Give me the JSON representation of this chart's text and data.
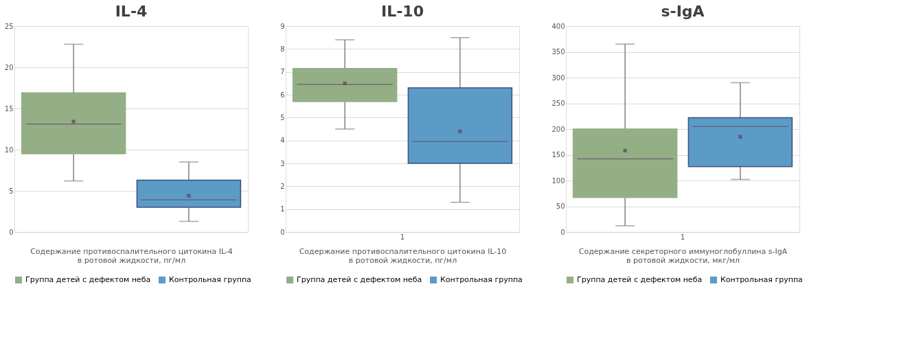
{
  "chart_data": [
    {
      "type": "box",
      "title": "IL-4",
      "xlabel": "Содержание противоспалительного цитокина IL-4\nв ротовой жидкости, пг/мл",
      "categories": [
        null
      ],
      "ylim": [
        0,
        25
      ],
      "yticks": [
        0,
        5,
        10,
        15,
        20,
        25
      ],
      "grid": "y",
      "legend": "bottom",
      "series": [
        {
          "name": "Группа детей с дефектом неба",
          "color": "#94ae86",
          "boxes": [
            {
              "low": 6.2,
              "q1": 9.5,
              "median": 13.1,
              "q3": 16.9,
              "high": 22.8,
              "mean": 13.4
            }
          ]
        },
        {
          "name": "Контрольная группа",
          "color": "#5b9bc6",
          "boxes": [
            {
              "low": 1.3,
              "q1": 3.0,
              "median": 3.9,
              "q3": 6.3,
              "high": 8.5,
              "mean": 4.4
            }
          ]
        }
      ]
    },
    {
      "type": "box",
      "title": "IL-10",
      "xlabel": "Содержание противоспалительного цитокина IL-10\nв ротовой жидкости, пг/мл",
      "categories": [
        "1"
      ],
      "ylim": [
        0,
        9
      ],
      "yticks": [
        0,
        1,
        2,
        3,
        4,
        5,
        6,
        7,
        8,
        9
      ],
      "grid": "y",
      "legend": "bottom",
      "series": [
        {
          "name": "Группа детей с дефектом неба",
          "color": "#94ae86",
          "boxes": [
            {
              "low": 4.5,
              "q1": 5.7,
              "median": 6.45,
              "q3": 7.15,
              "high": 8.4,
              "mean": 6.5
            }
          ]
        },
        {
          "name": "Контрольная группа",
          "color": "#5b9bc6",
          "boxes": [
            {
              "low": 1.3,
              "q1": 3.0,
              "median": 3.95,
              "q3": 6.3,
              "high": 8.5,
              "mean": 4.4
            }
          ]
        }
      ]
    },
    {
      "type": "box",
      "title": "s-IgA",
      "xlabel": "Содержание секреторного иммуноглобуллина s-IgA\nв ротовой жидкости, мкг/мл",
      "categories": [
        "1"
      ],
      "ylim": [
        0,
        400
      ],
      "yticks": [
        0,
        50,
        100,
        150,
        200,
        250,
        300,
        350,
        400
      ],
      "grid": "y",
      "legend": "bottom",
      "series": [
        {
          "name": "Группа детей с дефектом неба",
          "color": "#94ae86",
          "boxes": [
            {
              "low": 12,
              "q1": 67,
              "median": 142,
              "q3": 200,
              "high": 365,
              "mean": 158
            }
          ]
        },
        {
          "name": "Контрольная группа",
          "color": "#5b9bc6",
          "boxes": [
            {
              "low": 102,
              "q1": 127,
              "median": 205,
              "q3": 222,
              "high": 290,
              "mean": 185
            }
          ]
        }
      ]
    }
  ]
}
